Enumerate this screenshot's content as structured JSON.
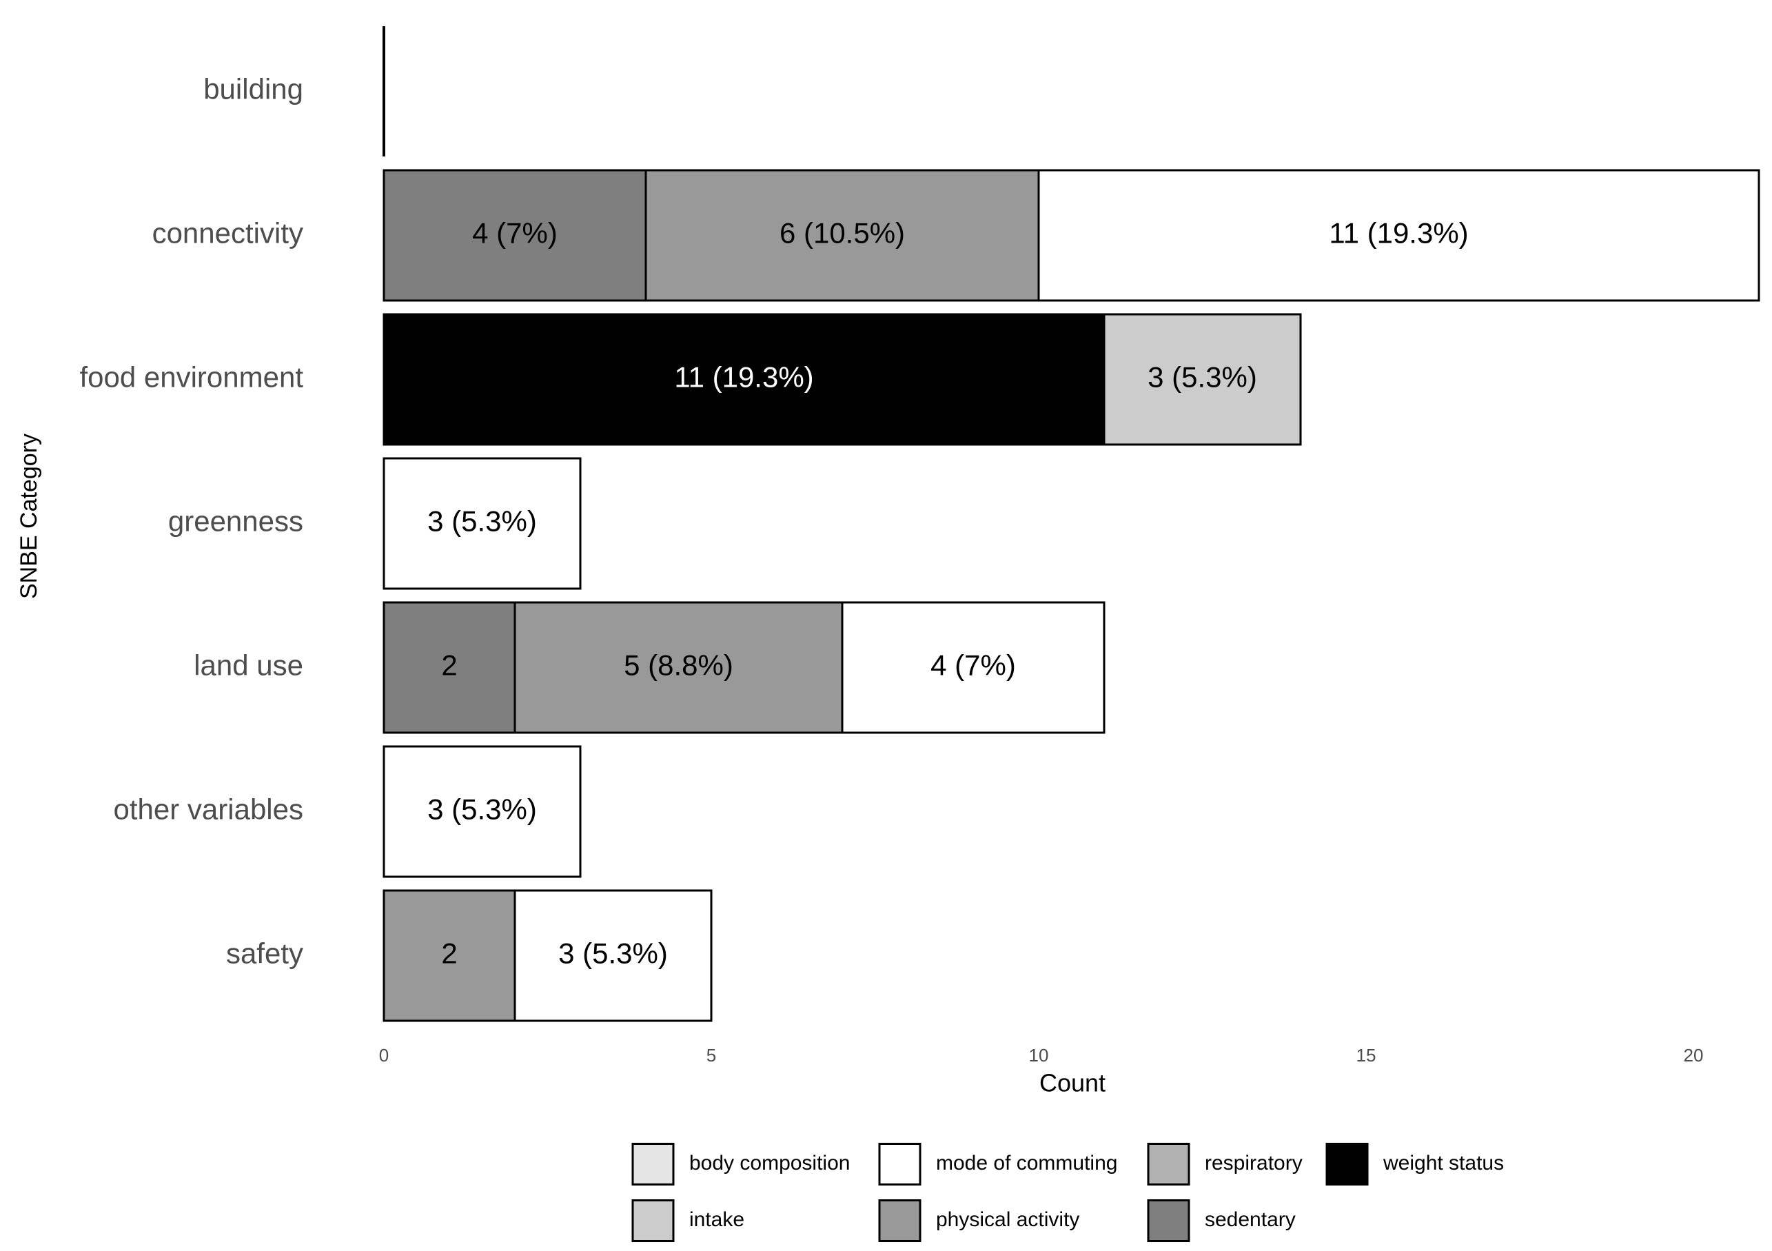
{
  "chart_data": {
    "type": "stacked-barh",
    "categories": [
      "building",
      "connectivity",
      "food environment",
      "greenness",
      "land use",
      "other variables",
      "safety"
    ],
    "series": [
      {
        "name": "body composition",
        "color": "#e5e5e5",
        "values": [
          null,
          null,
          null,
          null,
          null,
          null,
          null
        ],
        "value_labels": [
          null,
          null,
          null,
          null,
          null,
          null,
          null
        ]
      },
      {
        "name": "intake",
        "color": "#cccccc",
        "values": [
          null,
          null,
          3,
          null,
          null,
          null,
          null
        ],
        "value_labels": [
          null,
          null,
          "3 (5.3%)",
          null,
          null,
          null,
          null
        ]
      },
      {
        "name": "mode of commuting",
        "color": "#ffffff",
        "values": [
          0,
          11,
          null,
          3,
          4,
          3,
          3
        ],
        "value_labels": [
          null,
          "11 (19.3%)",
          null,
          "3 (5.3%)",
          "4 (7%)",
          "3 (5.3%)",
          "3 (5.3%)"
        ]
      },
      {
        "name": "physical activity",
        "color": "#999999",
        "values": [
          null,
          6,
          null,
          null,
          5,
          null,
          2
        ],
        "value_labels": [
          null,
          "6 (10.5%)",
          null,
          null,
          "5 (8.8%)",
          null,
          "2"
        ]
      },
      {
        "name": "respiratory",
        "color": "#b2b2b2",
        "values": [
          null,
          null,
          null,
          null,
          null,
          null,
          null
        ],
        "value_labels": [
          null,
          null,
          null,
          null,
          null,
          null,
          null
        ]
      },
      {
        "name": "sedentary",
        "color": "#7f7f7f",
        "values": [
          null,
          4,
          null,
          null,
          2,
          null,
          null
        ],
        "value_labels": [
          null,
          "4 (7%)",
          null,
          null,
          "2",
          null,
          null
        ]
      },
      {
        "name": "weight status",
        "color": "#000000",
        "values": [
          null,
          null,
          11,
          null,
          null,
          null,
          null
        ],
        "value_labels": [
          null,
          null,
          "11 (19.3%)",
          null,
          null,
          null,
          null
        ]
      }
    ],
    "x_label": "Count",
    "y_label": "SNBE Category",
    "xlim": [
      0,
      21
    ],
    "xticks": [
      0,
      5,
      10,
      15,
      20
    ],
    "grid": false,
    "legend": "bottom"
  }
}
